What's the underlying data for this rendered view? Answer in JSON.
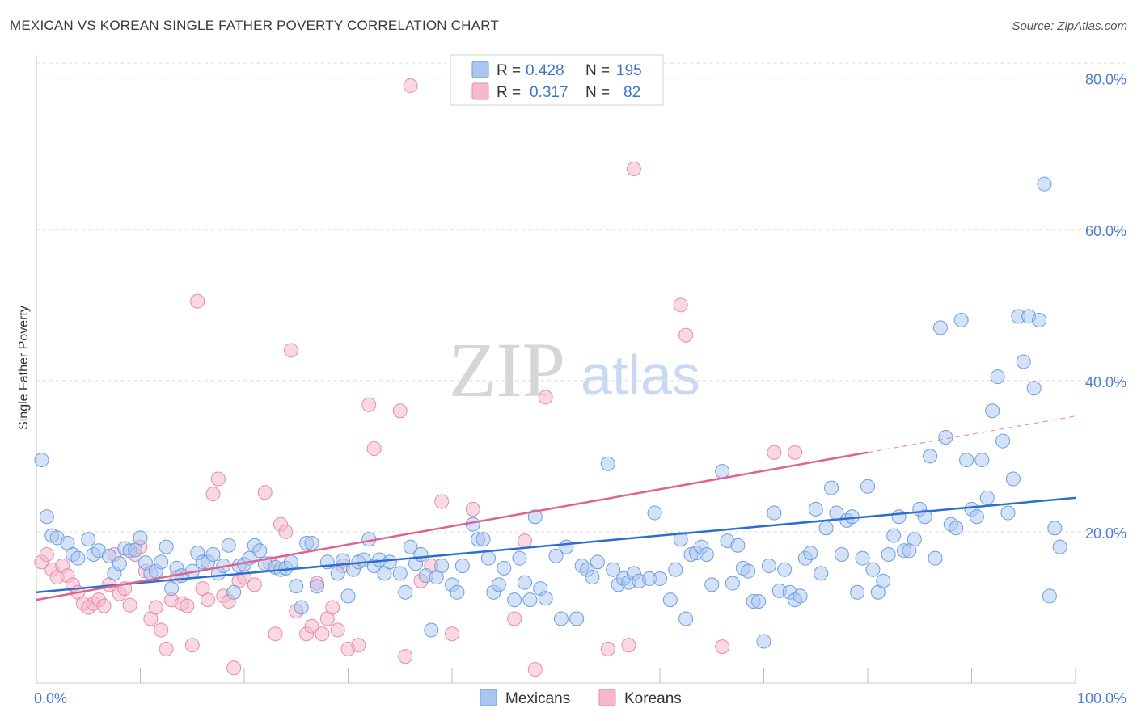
{
  "title": "MEXICAN VS KOREAN SINGLE FATHER POVERTY CORRELATION CHART",
  "source": "Source: ZipAtlas.com",
  "watermark": {
    "zip": "ZIP",
    "atlas": "atlas"
  },
  "colors": {
    "mexicans_fill": "#a9c6ef",
    "mexicans_stroke": "#6d9de0",
    "mexicans_line": "#2a6fd0",
    "koreans_fill": "#f6b8cb",
    "koreans_stroke": "#e98aa8",
    "koreans_line": "#e0628f",
    "tick_label": "#4a7fd0",
    "grid": "#dddddd"
  },
  "legend": {
    "rows": [
      {
        "r_label": "R =",
        "r_value": "0.428",
        "n_label": "N =",
        "n_value": "195"
      },
      {
        "r_label": "R =",
        "r_value": "0.317",
        "n_label": "N =",
        "n_value": "82"
      }
    ]
  },
  "bottom_legend": [
    "Mexicans",
    "Koreans"
  ],
  "chart_data": {
    "type": "scatter",
    "title": "MEXICAN VS KOREAN SINGLE FATHER POVERTY CORRELATION CHART",
    "ylabel": "Single Father Poverty",
    "xlabel": "",
    "xlim": [
      0,
      100
    ],
    "ylim": [
      0,
      82
    ],
    "x_tick_labels": [
      "0.0%",
      "100.0%"
    ],
    "y_ticks": [
      20,
      40,
      60,
      80
    ],
    "y_tick_labels": [
      "20.0%",
      "40.0%",
      "60.0%",
      "80.0%"
    ],
    "grid": true,
    "legend_position": "top-center",
    "series": [
      {
        "name": "Mexicans",
        "r": 0.428,
        "n": 195,
        "trend": {
          "x": [
            0,
            100
          ],
          "y": [
            12.0,
            24.5
          ]
        },
        "points": [
          [
            0.5,
            29.5
          ],
          [
            1,
            22
          ],
          [
            1.5,
            19.5
          ],
          [
            2,
            19.2
          ],
          [
            3,
            18.5
          ],
          [
            3.5,
            17
          ],
          [
            4,
            16.5
          ],
          [
            5,
            19
          ],
          [
            5.5,
            17
          ],
          [
            6,
            17.5
          ],
          [
            7,
            16.8
          ],
          [
            7.5,
            14.5
          ],
          [
            8,
            15.8
          ],
          [
            8.5,
            17.8
          ],
          [
            9,
            17.5
          ],
          [
            9.5,
            17.6
          ],
          [
            10,
            19.2
          ],
          [
            10.5,
            15.9
          ],
          [
            11,
            14.5
          ],
          [
            11.5,
            14.8
          ],
          [
            12,
            16
          ],
          [
            12.5,
            18
          ],
          [
            13,
            12.5
          ],
          [
            13.5,
            15.2
          ],
          [
            14,
            14.2
          ],
          [
            15,
            14.8
          ],
          [
            15.5,
            17.2
          ],
          [
            16,
            16
          ],
          [
            16.5,
            16
          ],
          [
            17,
            17
          ],
          [
            17.5,
            14.5
          ],
          [
            18,
            15.5
          ],
          [
            18.5,
            18.2
          ],
          [
            19,
            12
          ],
          [
            19.5,
            15.5
          ],
          [
            20,
            15.7
          ],
          [
            20.5,
            16.5
          ],
          [
            21,
            18.2
          ],
          [
            21.5,
            17.5
          ],
          [
            22,
            15.8
          ],
          [
            23,
            15.3
          ],
          [
            23.5,
            15
          ],
          [
            24,
            15.2
          ],
          [
            24.5,
            16
          ],
          [
            25,
            12.8
          ],
          [
            25.5,
            10
          ],
          [
            26,
            18.5
          ],
          [
            26.5,
            18.5
          ],
          [
            27,
            12.8
          ],
          [
            28,
            16
          ],
          [
            29,
            14.5
          ],
          [
            29.5,
            16.2
          ],
          [
            30,
            11.5
          ],
          [
            30.5,
            15
          ],
          [
            31,
            16
          ],
          [
            31.5,
            16.3
          ],
          [
            32,
            19
          ],
          [
            32.5,
            15.5
          ],
          [
            33,
            16.3
          ],
          [
            33.5,
            14.5
          ],
          [
            34,
            16
          ],
          [
            35,
            14.5
          ],
          [
            35.5,
            12
          ],
          [
            36,
            18
          ],
          [
            36.5,
            15.8
          ],
          [
            37,
            17
          ],
          [
            37.5,
            14.2
          ],
          [
            38,
            7
          ],
          [
            38.5,
            14
          ],
          [
            39,
            15.5
          ],
          [
            40,
            13
          ],
          [
            40.5,
            12
          ],
          [
            41,
            15.5
          ],
          [
            42,
            21
          ],
          [
            42.5,
            19
          ],
          [
            43,
            19
          ],
          [
            43.5,
            16.5
          ],
          [
            44,
            12
          ],
          [
            44.5,
            13
          ],
          [
            45,
            15.2
          ],
          [
            46,
            11
          ],
          [
            46.5,
            16.5
          ],
          [
            47,
            13.3
          ],
          [
            47.5,
            11
          ],
          [
            48,
            22
          ],
          [
            48.5,
            12.5
          ],
          [
            49,
            11.2
          ],
          [
            50,
            16.8
          ],
          [
            50.5,
            8.5
          ],
          [
            51,
            18
          ],
          [
            52,
            8.5
          ],
          [
            52.5,
            15.5
          ],
          [
            53,
            15
          ],
          [
            53.5,
            14
          ],
          [
            54,
            16
          ],
          [
            55,
            29
          ],
          [
            55.5,
            15
          ],
          [
            56,
            13
          ],
          [
            56.5,
            13.8
          ],
          [
            57,
            13.3
          ],
          [
            57.5,
            14.5
          ],
          [
            58,
            13.5
          ],
          [
            59,
            13.8
          ],
          [
            59.5,
            22.5
          ],
          [
            60,
            13.8
          ],
          [
            61,
            11
          ],
          [
            61.5,
            15
          ],
          [
            62,
            19
          ],
          [
            62.5,
            8.5
          ],
          [
            63,
            17
          ],
          [
            63.5,
            17.2
          ],
          [
            64,
            18
          ],
          [
            64.5,
            17
          ],
          [
            65,
            13
          ],
          [
            66,
            28
          ],
          [
            66.5,
            18.8
          ],
          [
            67,
            13.2
          ],
          [
            67.5,
            18.2
          ],
          [
            68,
            15.2
          ],
          [
            68.5,
            14.8
          ],
          [
            69,
            10.8
          ],
          [
            69.5,
            10.8
          ],
          [
            70,
            5.5
          ],
          [
            70.5,
            15.5
          ],
          [
            71,
            22.5
          ],
          [
            71.5,
            12.2
          ],
          [
            72,
            15
          ],
          [
            72.5,
            12
          ],
          [
            73,
            11
          ],
          [
            73.5,
            11.5
          ],
          [
            74,
            16.5
          ],
          [
            74.5,
            17.2
          ],
          [
            75,
            23
          ],
          [
            75.5,
            14.5
          ],
          [
            76,
            20.5
          ],
          [
            76.5,
            25.8
          ],
          [
            77,
            22.5
          ],
          [
            77.5,
            17
          ],
          [
            78,
            21.5
          ],
          [
            78.5,
            22
          ],
          [
            79,
            12
          ],
          [
            79.5,
            16.5
          ],
          [
            80,
            26
          ],
          [
            80.5,
            15
          ],
          [
            81,
            12
          ],
          [
            81.5,
            13.5
          ],
          [
            82,
            17
          ],
          [
            82.5,
            19.5
          ],
          [
            83,
            22
          ],
          [
            83.5,
            17.5
          ],
          [
            84,
            17.5
          ],
          [
            84.5,
            19
          ],
          [
            85,
            23
          ],
          [
            85.5,
            22
          ],
          [
            86,
            30
          ],
          [
            86.5,
            16.5
          ],
          [
            87,
            47
          ],
          [
            87.5,
            32.5
          ],
          [
            88,
            21
          ],
          [
            88.5,
            20.5
          ],
          [
            89,
            48
          ],
          [
            89.5,
            29.5
          ],
          [
            90,
            23
          ],
          [
            90.5,
            22
          ],
          [
            91,
            29.5
          ],
          [
            91.5,
            24.5
          ],
          [
            92,
            36
          ],
          [
            92.5,
            40.5
          ],
          [
            93,
            32
          ],
          [
            93.5,
            22.5
          ],
          [
            94,
            27
          ],
          [
            94.5,
            48.5
          ],
          [
            95,
            42.5
          ],
          [
            95.5,
            48.5
          ],
          [
            96,
            39
          ],
          [
            96.5,
            48
          ],
          [
            97,
            66
          ],
          [
            97.5,
            11.5
          ],
          [
            98,
            20.5
          ],
          [
            98.5,
            18
          ]
        ]
      },
      {
        "name": "Koreans",
        "r": 0.317,
        "n": 82,
        "trend": {
          "x": [
            0,
            80
          ],
          "y": [
            11.0,
            30.5
          ]
        },
        "trend_dashed": {
          "x": [
            80,
            100
          ],
          "y": [
            30.5,
            35.3
          ]
        },
        "points": [
          [
            0.5,
            16
          ],
          [
            1,
            17
          ],
          [
            1.5,
            15
          ],
          [
            2,
            14
          ],
          [
            2.5,
            15.5
          ],
          [
            3,
            14.2
          ],
          [
            3.5,
            13
          ],
          [
            4,
            12
          ],
          [
            4.5,
            10.5
          ],
          [
            5,
            10
          ],
          [
            5.5,
            10.5
          ],
          [
            6,
            11
          ],
          [
            6.5,
            10.2
          ],
          [
            7,
            13
          ],
          [
            7.5,
            17
          ],
          [
            8,
            11.8
          ],
          [
            8.5,
            12.5
          ],
          [
            9,
            10.3
          ],
          [
            9.5,
            17
          ],
          [
            10,
            18
          ],
          [
            10.5,
            14.8
          ],
          [
            11,
            8.5
          ],
          [
            11.5,
            10
          ],
          [
            12,
            7
          ],
          [
            12.5,
            4.5
          ],
          [
            13,
            11
          ],
          [
            13.5,
            14
          ],
          [
            14,
            10.5
          ],
          [
            14.5,
            10.2
          ],
          [
            15,
            5
          ],
          [
            15.5,
            50.5
          ],
          [
            16,
            12.5
          ],
          [
            16.5,
            11
          ],
          [
            17,
            25
          ],
          [
            17.5,
            27
          ],
          [
            18,
            11.5
          ],
          [
            18.5,
            10.8
          ],
          [
            19,
            2
          ],
          [
            19.5,
            13.5
          ],
          [
            20,
            14
          ],
          [
            21,
            13
          ],
          [
            22,
            25.2
          ],
          [
            22.5,
            15.8
          ],
          [
            23,
            6.5
          ],
          [
            23.5,
            21
          ],
          [
            24,
            20
          ],
          [
            24.5,
            44
          ],
          [
            25,
            9.5
          ],
          [
            26,
            6.5
          ],
          [
            26.5,
            7.5
          ],
          [
            27,
            13.2
          ],
          [
            27.5,
            6.5
          ],
          [
            28,
            8.5
          ],
          [
            28.5,
            10
          ],
          [
            29,
            7
          ],
          [
            29.5,
            15.5
          ],
          [
            30,
            4.5
          ],
          [
            31,
            5
          ],
          [
            32,
            36.8
          ],
          [
            32.5,
            31
          ],
          [
            35,
            36
          ],
          [
            35.5,
            3.5
          ],
          [
            36,
            79
          ],
          [
            37,
            13.5
          ],
          [
            38,
            15.5
          ],
          [
            39,
            24
          ],
          [
            40,
            6.5
          ],
          [
            42,
            23
          ],
          [
            46,
            8.5
          ],
          [
            47,
            18.8
          ],
          [
            48,
            1.8
          ],
          [
            49,
            37.8
          ],
          [
            55,
            4.5
          ],
          [
            57,
            5
          ],
          [
            57.5,
            68
          ],
          [
            62,
            50
          ],
          [
            62.5,
            46
          ],
          [
            66,
            4.8
          ],
          [
            71,
            30.5
          ],
          [
            73,
            30.5
          ]
        ]
      }
    ]
  }
}
